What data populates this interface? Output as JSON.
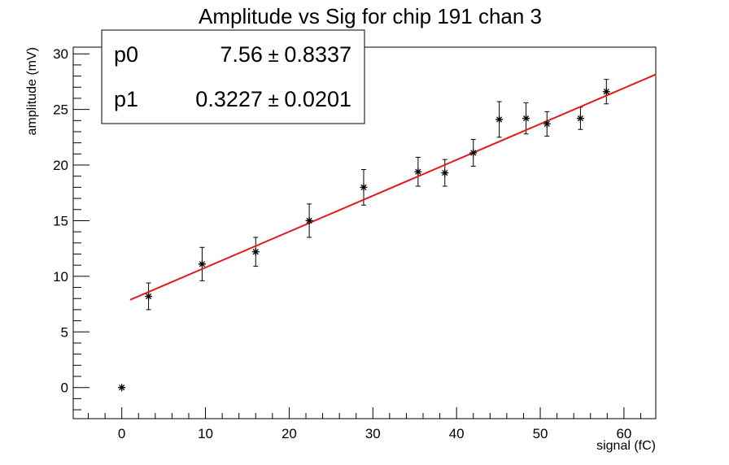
{
  "chart_data": {
    "type": "scatter",
    "title": "Amplitude vs Sig for chip 191 chan 3",
    "xlabel": "signal (fC)",
    "ylabel": "amplitude (mV)",
    "xlim": [
      -5.8,
      63.8
    ],
    "ylim": [
      -2.8,
      30.6
    ],
    "x_ticks": [
      0,
      10,
      20,
      30,
      40,
      50,
      60
    ],
    "y_ticks": [
      0,
      5,
      10,
      15,
      20,
      25,
      30
    ],
    "grid": false,
    "series": [
      {
        "marker": "star",
        "color": "#000000",
        "points": [
          {
            "x": 0,
            "y": 0,
            "err": 0
          },
          {
            "x": 3.2,
            "y": 8.2,
            "err": 1.2
          },
          {
            "x": 9.6,
            "y": 11.1,
            "err": 1.5
          },
          {
            "x": 16.0,
            "y": 12.2,
            "err": 1.3
          },
          {
            "x": 22.4,
            "y": 15.0,
            "err": 1.5
          },
          {
            "x": 28.9,
            "y": 18.0,
            "err": 1.6
          },
          {
            "x": 35.4,
            "y": 19.4,
            "err": 1.3
          },
          {
            "x": 38.6,
            "y": 19.3,
            "err": 1.2
          },
          {
            "x": 42.0,
            "y": 21.1,
            "err": 1.2
          },
          {
            "x": 45.1,
            "y": 24.1,
            "err": 1.6
          },
          {
            "x": 48.3,
            "y": 24.2,
            "err": 1.4
          },
          {
            "x": 50.8,
            "y": 23.7,
            "err": 1.1
          },
          {
            "x": 54.8,
            "y": 24.2,
            "err": 1.0
          },
          {
            "x": 57.9,
            "y": 26.6,
            "err": 1.1
          }
        ]
      }
    ],
    "fit": {
      "color": "#e31a1c",
      "x_range": [
        1.0,
        63.8
      ],
      "p0": 7.56,
      "p1": 0.3227
    },
    "stats_box": {
      "placement": "top-left",
      "rows": [
        {
          "name": "p0",
          "value": "7.56",
          "error": "0.8337"
        },
        {
          "name": "p1",
          "value": "0.3227",
          "error": "0.0201"
        }
      ]
    }
  }
}
